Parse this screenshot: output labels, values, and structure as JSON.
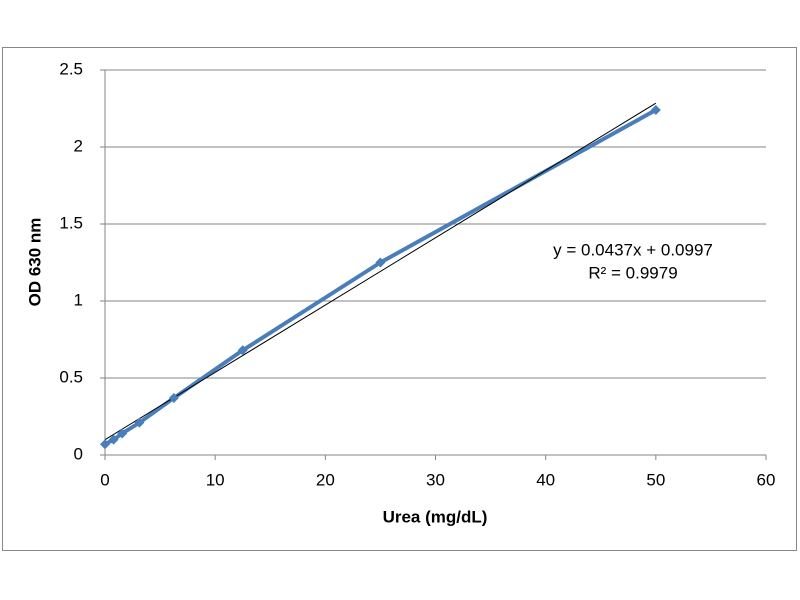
{
  "chart_data": {
    "type": "scatter",
    "x_label": "Urea (mg/dL)",
    "y_label": "OD 630 nm",
    "series": [
      {
        "name": "OD 630 nm",
        "color": "#4a7ebb",
        "x": [
          0,
          0.78,
          1.56,
          3.125,
          6.25,
          12.5,
          25,
          50
        ],
        "values": [
          0.07,
          0.1,
          0.14,
          0.21,
          0.37,
          0.68,
          1.25,
          2.24
        ]
      }
    ],
    "trendline": {
      "slope": 0.0437,
      "intercept": 0.0997,
      "color": "#000000",
      "equation": "y = 0.0437x + 0.0997",
      "r_squared": "R² = 0.9979"
    },
    "xlim": [
      0,
      60
    ],
    "xticks": [
      0,
      10,
      20,
      30,
      40,
      50,
      60
    ],
    "ylim": [
      0,
      2.5
    ],
    "yticks": [
      0,
      0.5,
      1,
      1.5,
      2,
      2.5
    ],
    "grid": true
  }
}
